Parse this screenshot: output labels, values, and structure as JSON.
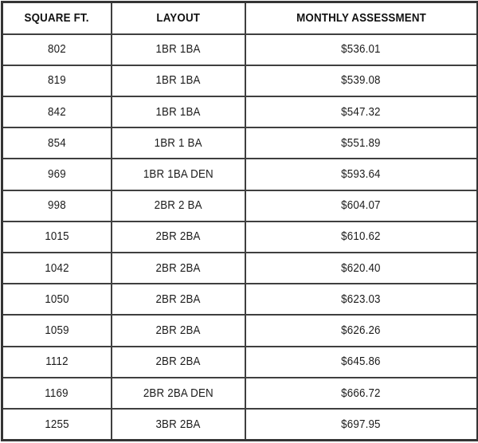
{
  "chart_data": {
    "type": "table",
    "title": "",
    "columns": [
      "SQUARE FT.",
      "LAYOUT",
      "MONTHLY ASSESSMENT"
    ],
    "rows": [
      [
        "802",
        "1BR 1BA",
        "$536.01"
      ],
      [
        "819",
        "1BR 1BA",
        "$539.08"
      ],
      [
        "842",
        "1BR 1BA",
        "$547.32"
      ],
      [
        "854",
        "1BR 1 BA",
        "$551.89"
      ],
      [
        "969",
        "1BR 1BA DEN",
        "$593.64"
      ],
      [
        "998",
        "2BR 2 BA",
        "$604.07"
      ],
      [
        "1015",
        "2BR 2BA",
        "$610.62"
      ],
      [
        "1042",
        "2BR 2BA",
        "$620.40"
      ],
      [
        "1050",
        "2BR 2BA",
        "$623.03"
      ],
      [
        "1059",
        "2BR 2BA",
        "$626.26"
      ],
      [
        "1112",
        "2BR 2BA",
        "$645.86"
      ],
      [
        "1169",
        "2BR 2BA DEN",
        "$666.72"
      ],
      [
        "1255",
        "3BR 2BA",
        "$697.95"
      ]
    ],
    "layout_hints": {
      "grid": "on",
      "alignment": "center"
    }
  },
  "colors": {
    "border_inner": "#3f3f3f",
    "border_outer": "#353535",
    "header_text": "#111111",
    "cell_text": "#1c1c1c",
    "background": "#ffffff"
  }
}
